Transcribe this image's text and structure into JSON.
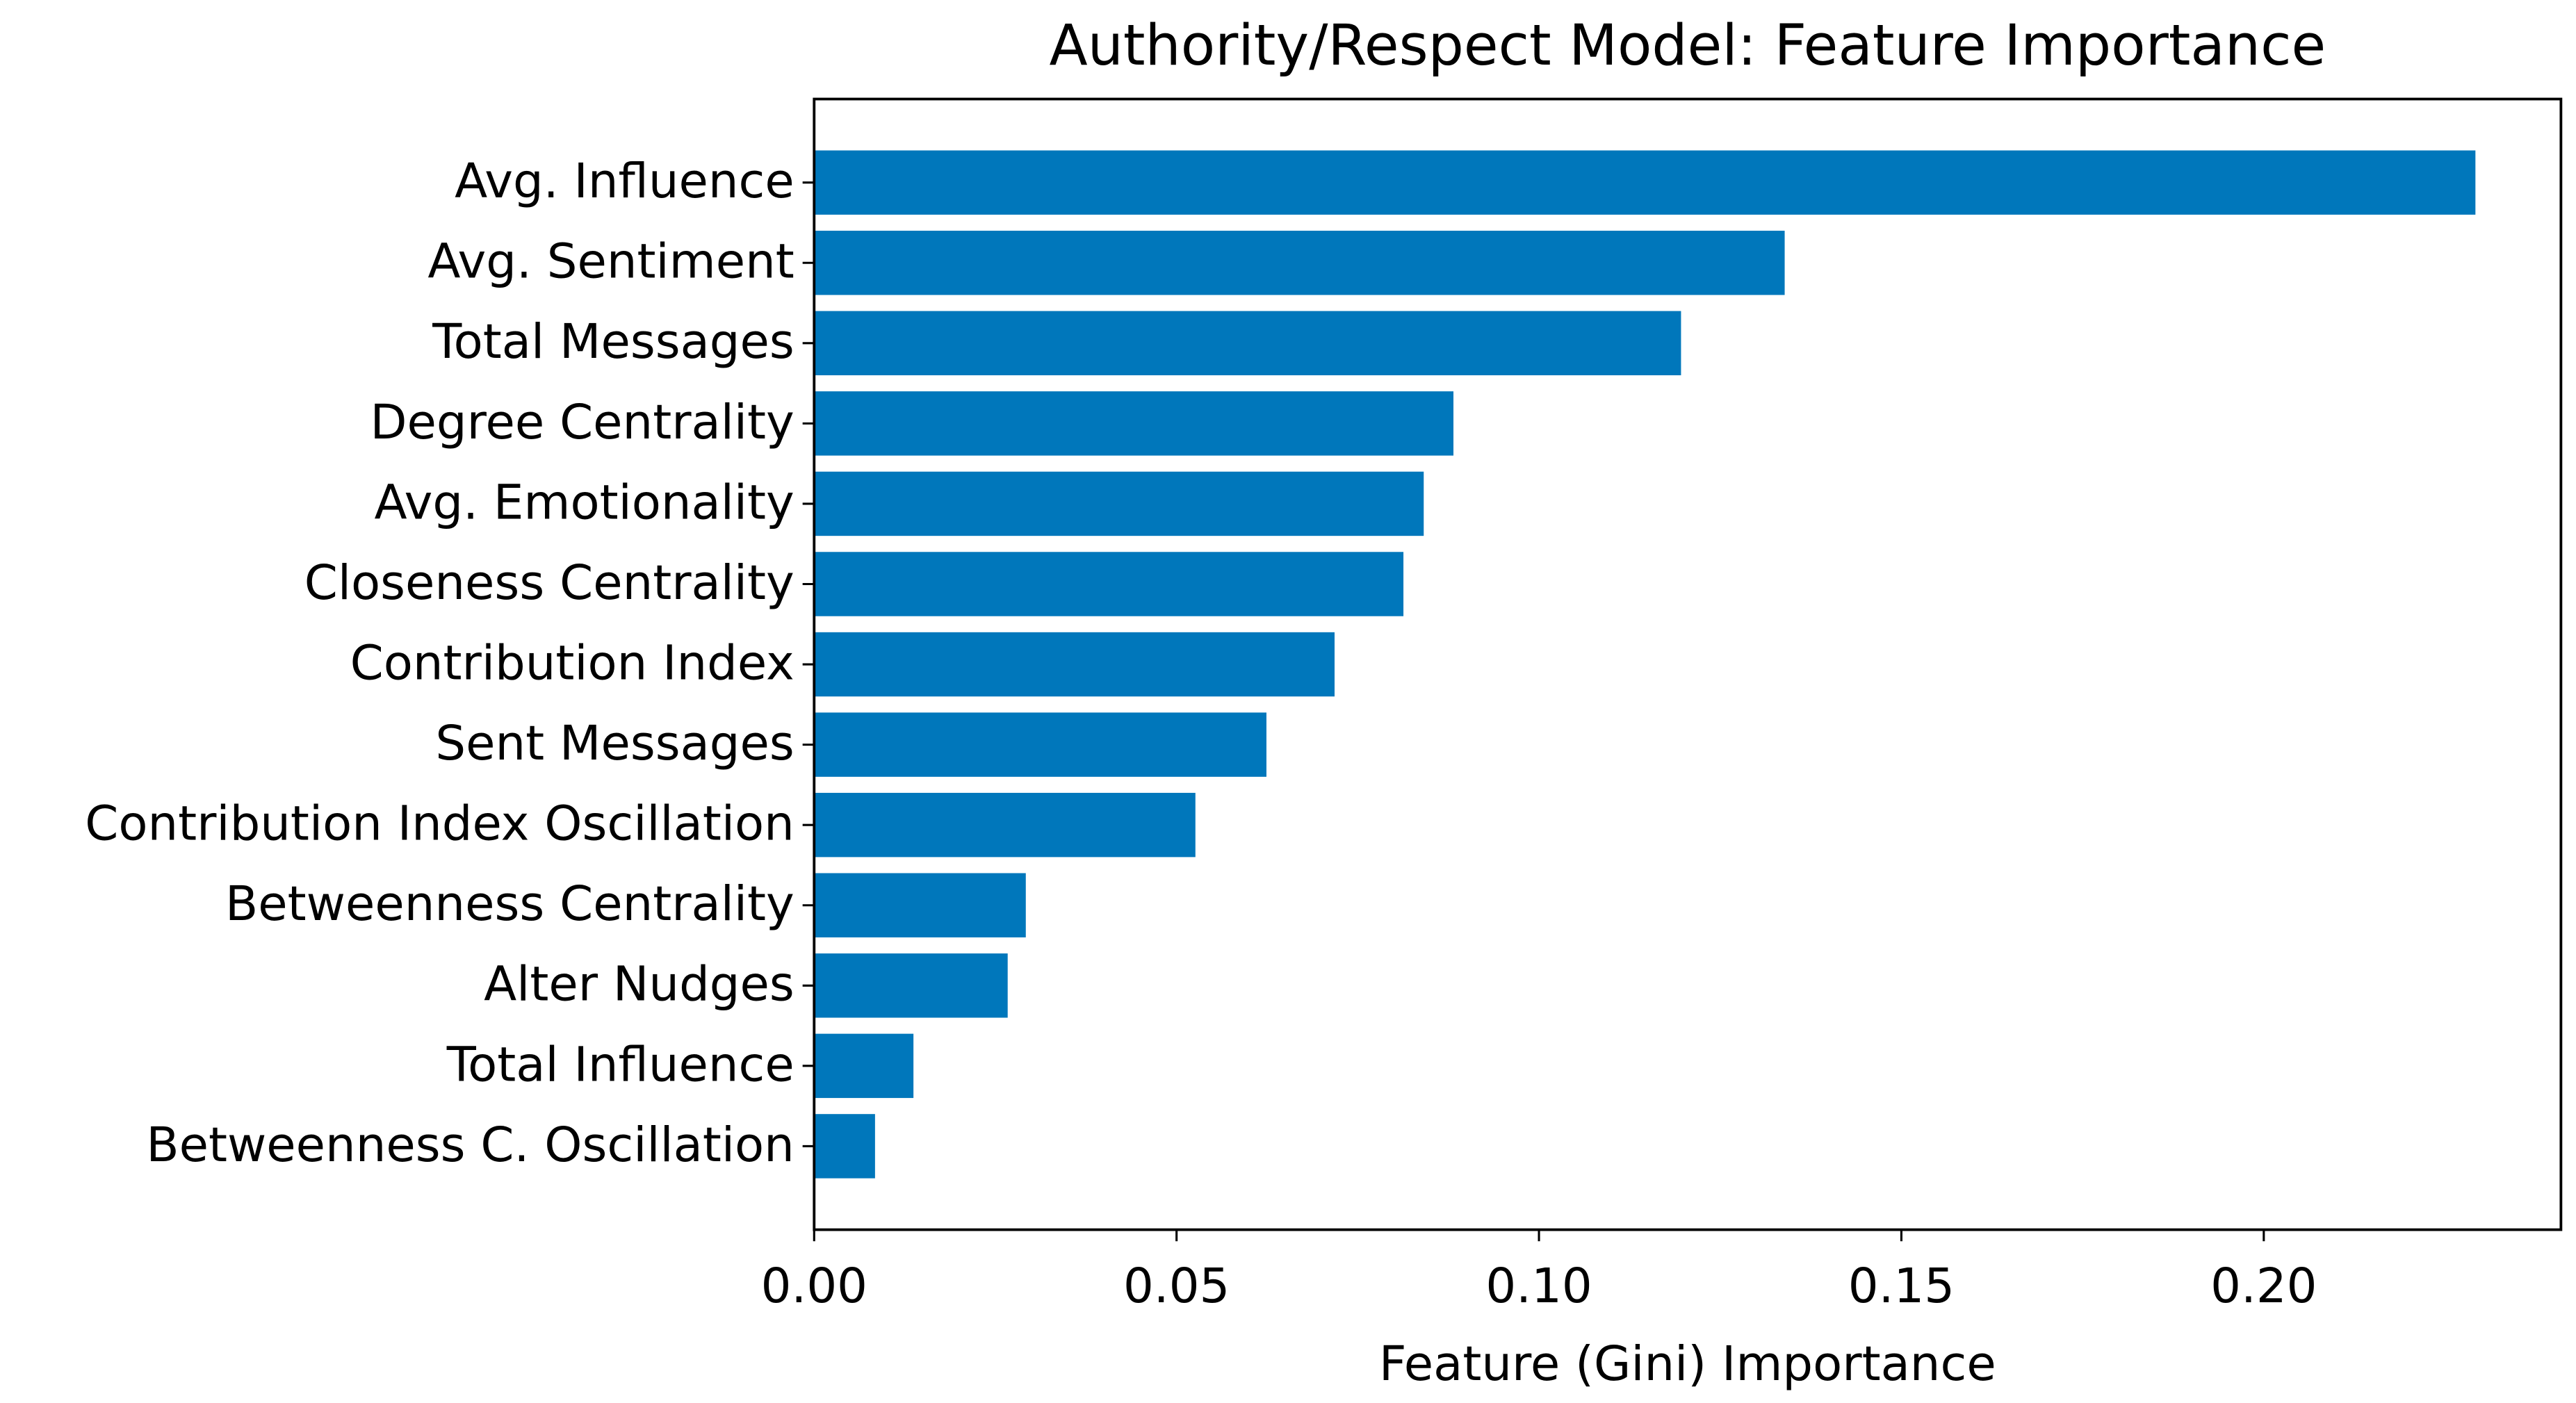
{
  "chart_data": {
    "type": "barh",
    "title": "Authority/Respect Model: Feature Importance",
    "x_label": "Feature (Gini) Importance",
    "categories": [
      "Avg. Influence",
      "Avg. Sentiment",
      "Total Messages",
      "Degree Centrality",
      "Avg. Emotionality",
      "Closeness Centrality",
      "Contribution Index",
      "Sent Messages",
      "Contribution Index Oscillation",
      "Betweenness Centrality",
      "Alter Nudges",
      "Total Influence",
      "Betweenness C. Oscillation"
    ],
    "values": [
      0.2292,
      0.1339,
      0.1196,
      0.0882,
      0.0841,
      0.0813,
      0.0718,
      0.0624,
      0.0526,
      0.0292,
      0.0267,
      0.0137,
      0.0084
    ],
    "color": "#0077bb",
    "xlim": [
      0,
      0.241
    ],
    "xticks": [
      {
        "value": 0,
        "label": "0.00"
      },
      {
        "value": 0.05,
        "label": "0.05"
      },
      {
        "value": 0.1,
        "label": "0.10"
      },
      {
        "value": 0.15,
        "label": "0.15"
      },
      {
        "value": 0.2,
        "label": "0.20"
      }
    ],
    "grid": false
  }
}
